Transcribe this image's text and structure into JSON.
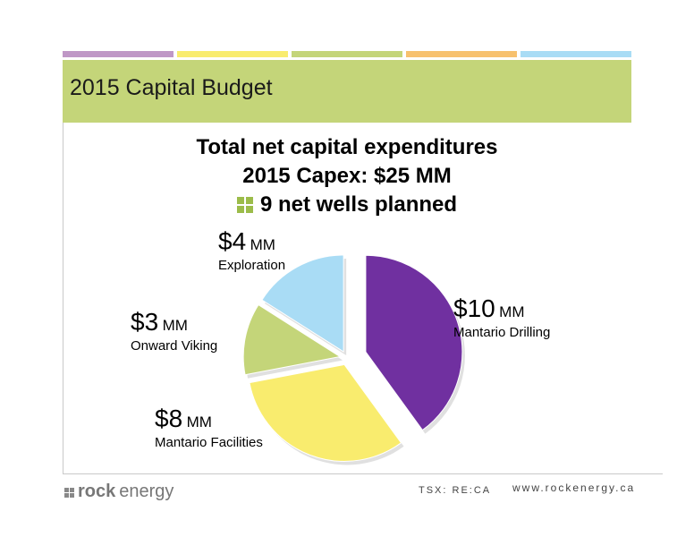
{
  "slide": {
    "title": "2015 Capital Budget",
    "accent_colors": [
      "#bf97c6",
      "#f9ec6e",
      "#c4d579",
      "#f7c16e",
      "#a9dcf5"
    ],
    "title_band_color": "#c4d579"
  },
  "heading": {
    "line1": "Total net capital expenditures",
    "line2": "2015 Capex: $25 MM",
    "line3": "9 net wells planned"
  },
  "chart_data": {
    "type": "pie",
    "unit": "MM",
    "slices": [
      {
        "name": "Mantario Drilling",
        "amount": "$10",
        "unit": "MM",
        "value": 10,
        "color": "#7030a0",
        "exploded": true
      },
      {
        "name": "Mantario Facilities",
        "amount": "$8",
        "unit": "MM",
        "value": 8,
        "color": "#f9ec6e",
        "exploded": false
      },
      {
        "name": "Onward Viking",
        "amount": "$3",
        "unit": "MM",
        "value": 3,
        "color": "#c4d579",
        "exploded": false
      },
      {
        "name": "Exploration",
        "amount": "$4",
        "unit": "MM",
        "value": 4,
        "color": "#a9dcf5",
        "exploded": false
      }
    ]
  },
  "footer": {
    "logo_bold": "rock",
    "logo_light": "energy",
    "ticker": "TSX: RE:CA",
    "website": "www.rockenergy.ca"
  }
}
